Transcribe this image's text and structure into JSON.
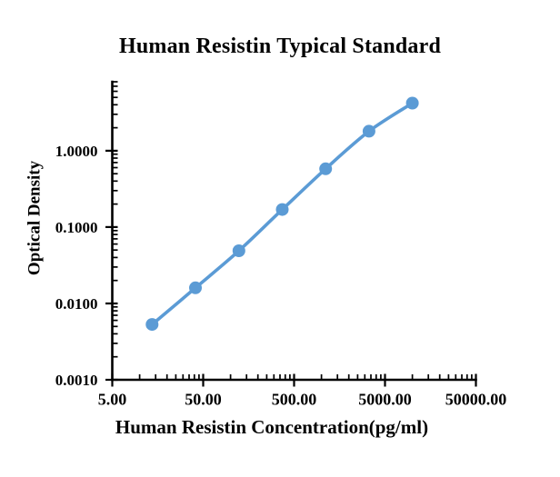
{
  "chart_data": {
    "type": "line",
    "title": "Human Resistin Typical Standard",
    "xlabel": "Human Resistin Concentration(pg/ml)",
    "ylabel": "Optical Density",
    "x_scale": "log",
    "y_scale": "log",
    "xlim": [
      5,
      50000
    ],
    "ylim": [
      0.001,
      8
    ],
    "grid": false,
    "legend": false,
    "line_color": "#5B9BD5",
    "axis_color": "#000000",
    "marker": "circle",
    "x_ticks": [
      {
        "value": 5,
        "label": "5.00"
      },
      {
        "value": 50,
        "label": "50.00"
      },
      {
        "value": 500,
        "label": "500.00"
      },
      {
        "value": 5000,
        "label": "5000.00"
      },
      {
        "value": 50000,
        "label": "50000.00"
      }
    ],
    "y_ticks": [
      {
        "value": 1,
        "label": "1.0000"
      },
      {
        "value": 0.1,
        "label": "0.1000"
      },
      {
        "value": 0.01,
        "label": "0.0100"
      },
      {
        "value": 0.001,
        "label": "0.0010"
      }
    ],
    "series": [
      {
        "points": [
          {
            "x": 13.72,
            "y": 0.0053
          },
          {
            "x": 41.15,
            "y": 0.016
          },
          {
            "x": 123.46,
            "y": 0.049
          },
          {
            "x": 370.37,
            "y": 0.17
          },
          {
            "x": 1111.11,
            "y": 0.58
          },
          {
            "x": 3333.33,
            "y": 1.8
          },
          {
            "x": 10000,
            "y": 4.2
          }
        ]
      }
    ]
  }
}
